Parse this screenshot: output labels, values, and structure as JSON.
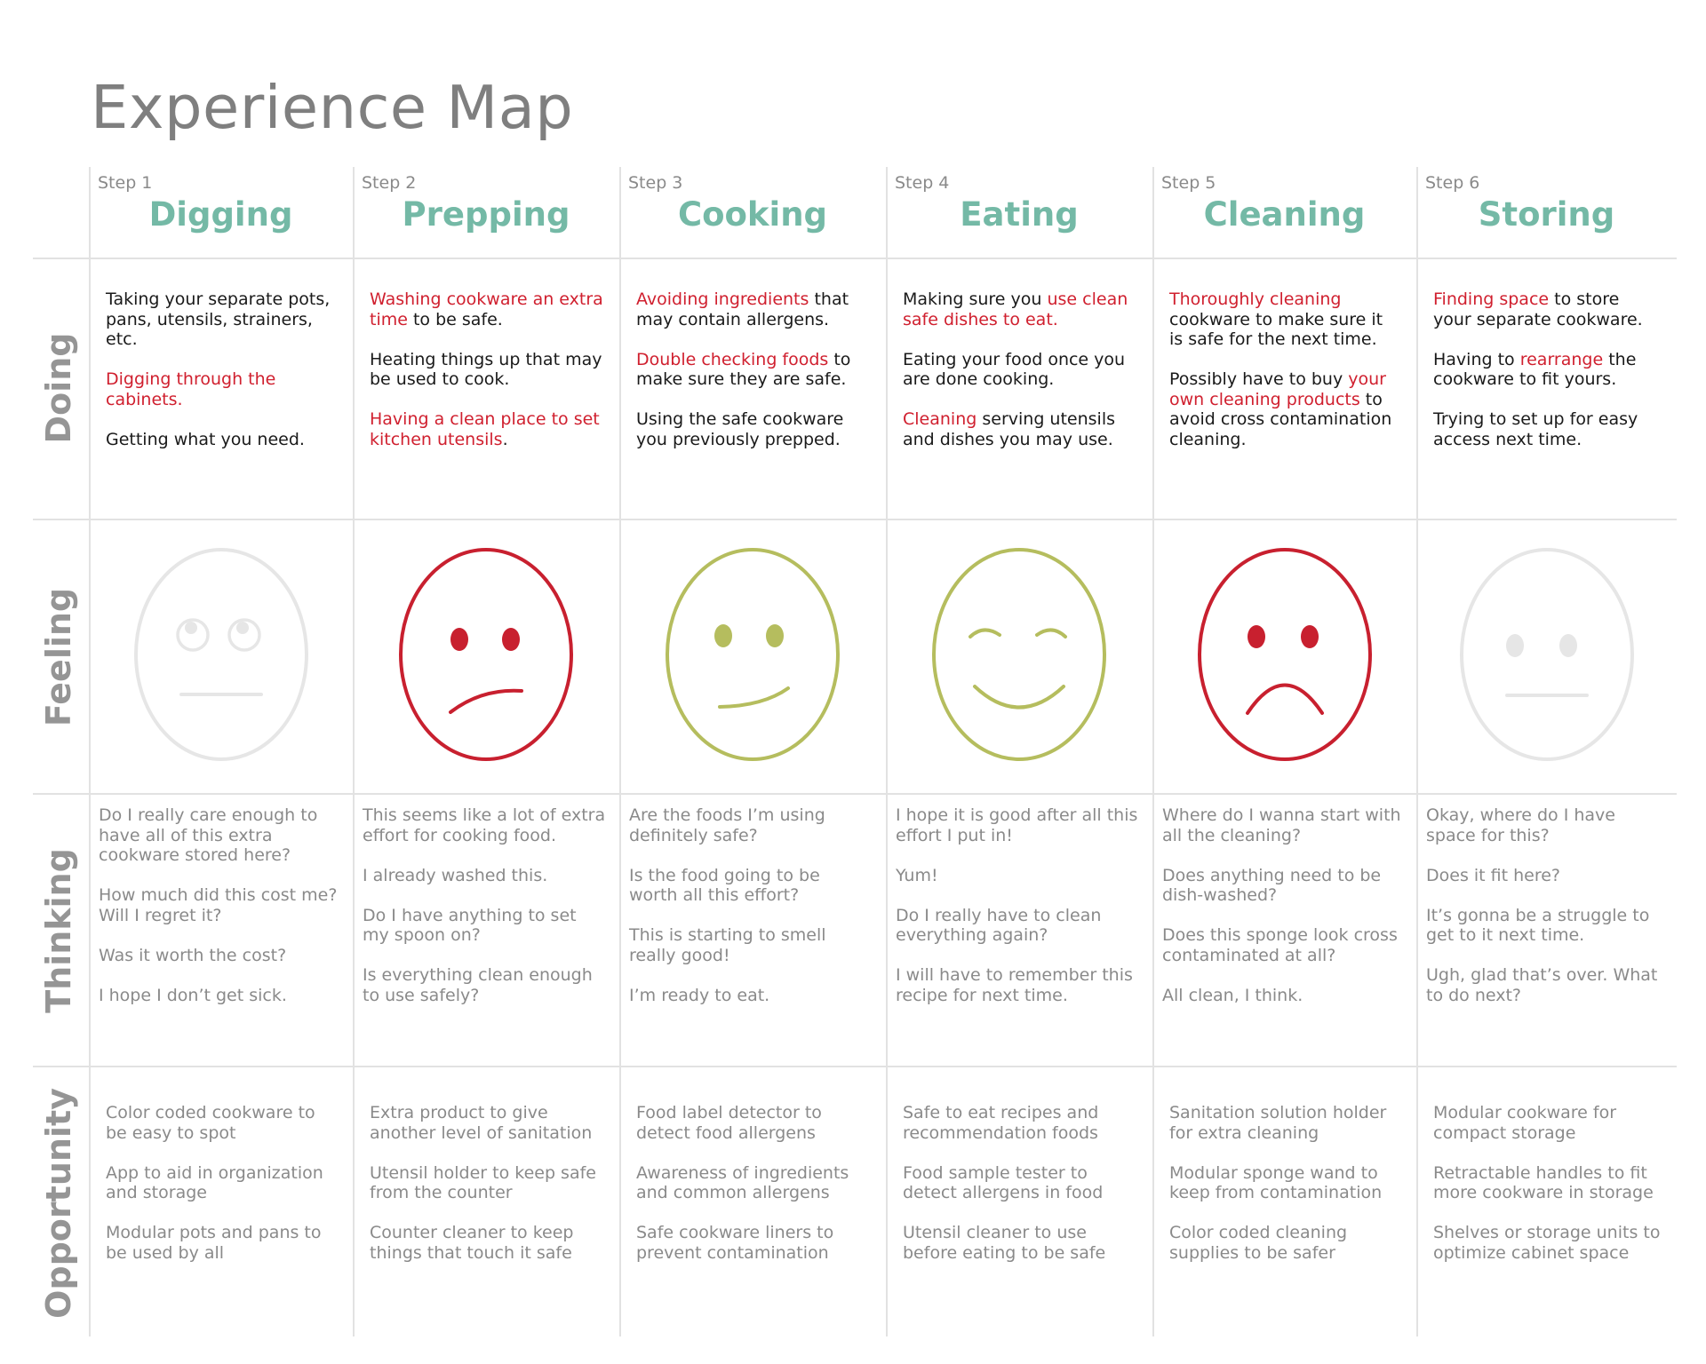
{
  "title": "Experience Map",
  "rows": {
    "doing": "Doing",
    "feeling": "Feeling",
    "thinking": "Thinking",
    "opportunity": "Opportunity"
  },
  "steps": [
    {
      "step": "Step 1",
      "name": "Digging",
      "doing": [
        [
          {
            "t": "Taking your separate pots, pans, utensils, strainers, etc.",
            "hl": false
          }
        ],
        [
          {
            "t": "Digging through the cabinets.",
            "hl": true
          }
        ],
        [
          {
            "t": "Getting what you need.",
            "hl": false
          }
        ]
      ],
      "feeling": {
        "mood": "eyes-rolled-neutral",
        "color": "#e6e6e6"
      },
      "thinking": [
        "Do I really care enough to have all of this extra cookware stored here?",
        "How much did this cost me? Will I regret it?",
        "Was it worth the cost?",
        "I hope I don’t get sick."
      ],
      "opportunity": [
        "Color coded cookware to be easy to spot",
        "App to aid in organization and storage",
        "Modular pots and pans to be used by all"
      ]
    },
    {
      "step": "Step 2",
      "name": "Prepping",
      "doing": [
        [
          {
            "t": "Washing cookware an extra time",
            "hl": true
          },
          {
            "t": " to be safe.",
            "hl": false
          }
        ],
        [
          {
            "t": "Heating things up that may be used to cook.",
            "hl": false
          }
        ],
        [
          {
            "t": "Having a clean place to set kitchen utensils",
            "hl": true
          },
          {
            "t": ".",
            "hl": false
          }
        ]
      ],
      "feeling": {
        "mood": "frown-skewed",
        "color": "#c8202f"
      },
      "thinking": [
        "This seems like a lot of extra effort for cooking food.",
        "I already washed this.",
        "Do I have anything to set my spoon on?",
        "Is everything clean enough to use safely?"
      ],
      "opportunity": [
        "Extra product to give another level of sanitation",
        "Utensil holder to keep safe from the counter",
        "Counter cleaner to keep things that touch it safe"
      ]
    },
    {
      "step": "Step 3",
      "name": "Cooking",
      "doing": [
        [
          {
            "t": "Avoiding ingredients",
            "hl": true
          },
          {
            "t": " that may contain allergens.",
            "hl": false
          }
        ],
        [
          {
            "t": "Double checking foods",
            "hl": true
          },
          {
            "t": " to make sure they are safe.",
            "hl": false
          }
        ],
        [
          {
            "t": "Using the safe cookware you previously prepped.",
            "hl": false
          }
        ]
      ],
      "feeling": {
        "mood": "slight-smile",
        "color": "#b5bd5e"
      },
      "thinking": [
        "Are the foods I’m using definitely safe?",
        "Is the food going to be worth all this effort?",
        "This is starting to smell really good!",
        "I’m ready to eat."
      ],
      "opportunity": [
        "Food label detector to detect food allergens",
        "Awareness of ingredients and common allergens",
        "Safe cookware liners to prevent contamination"
      ]
    },
    {
      "step": "Step 4",
      "name": "Eating",
      "doing": [
        [
          {
            "t": "Making sure you ",
            "hl": false
          },
          {
            "t": "use clean safe dishes to eat.",
            "hl": true
          }
        ],
        [
          {
            "t": "Eating your food once you are done cooking.",
            "hl": false
          }
        ],
        [
          {
            "t": "Cleaning",
            "hl": true
          },
          {
            "t": " serving utensils and dishes you may use.",
            "hl": false
          }
        ]
      ],
      "feeling": {
        "mood": "happy",
        "color": "#b5bd5e"
      },
      "thinking": [
        "I hope it is good after all this effort I put in!",
        "Yum!",
        "Do I really have to clean everything again?",
        "I will have to remember this recipe for next time."
      ],
      "opportunity": [
        "Safe to eat recipes and recommendation foods",
        "Food sample tester to detect allergens in food",
        "Utensil cleaner to use before eating to be safe"
      ]
    },
    {
      "step": "Step 5",
      "name": "Cleaning",
      "doing": [
        [
          {
            "t": "Thoroughly cleaning",
            "hl": true
          },
          {
            "t": " cookware to make sure it is safe for the next time.",
            "hl": false
          }
        ],
        [
          {
            "t": "Possibly have to buy ",
            "hl": false
          },
          {
            "t": "your own cleaning products",
            "hl": true
          },
          {
            "t": " to avoid cross contamination cleaning.",
            "hl": false
          }
        ]
      ],
      "feeling": {
        "mood": "sad",
        "color": "#c8202f"
      },
      "thinking": [
        "Where do I wanna start with all the cleaning?",
        "Does anything need to be dish-washed?",
        "Does this sponge look cross contaminated at all?",
        "All clean, I think."
      ],
      "opportunity": [
        "Sanitation solution holder for extra cleaning",
        "Modular sponge wand to keep from contamination",
        "Color coded cleaning supplies to be safer"
      ]
    },
    {
      "step": "Step 6",
      "name": "Storing",
      "doing": [
        [
          {
            "t": "Finding space",
            "hl": true
          },
          {
            "t": " to store your separate cookware.",
            "hl": false
          }
        ],
        [
          {
            "t": "Having to ",
            "hl": false
          },
          {
            "t": "rearrange",
            "hl": true
          },
          {
            "t": " the cookware to fit yours.",
            "hl": false
          }
        ],
        [
          {
            "t": "Trying to set up for easy access next time.",
            "hl": false
          }
        ]
      ],
      "feeling": {
        "mood": "neutral",
        "color": "#e6e6e6"
      },
      "thinking": [
        "Okay, where do I have space for this?",
        "Does it fit here?",
        "It’s gonna be a struggle to get to it next time.",
        "Ugh, glad that’s over. What to do next?"
      ],
      "opportunity": [
        "Modular cookware for compact storage",
        "Retractable handles to fit more cookware in storage",
        "Shelves or storage units to optimize cabinet space"
      ]
    }
  ]
}
